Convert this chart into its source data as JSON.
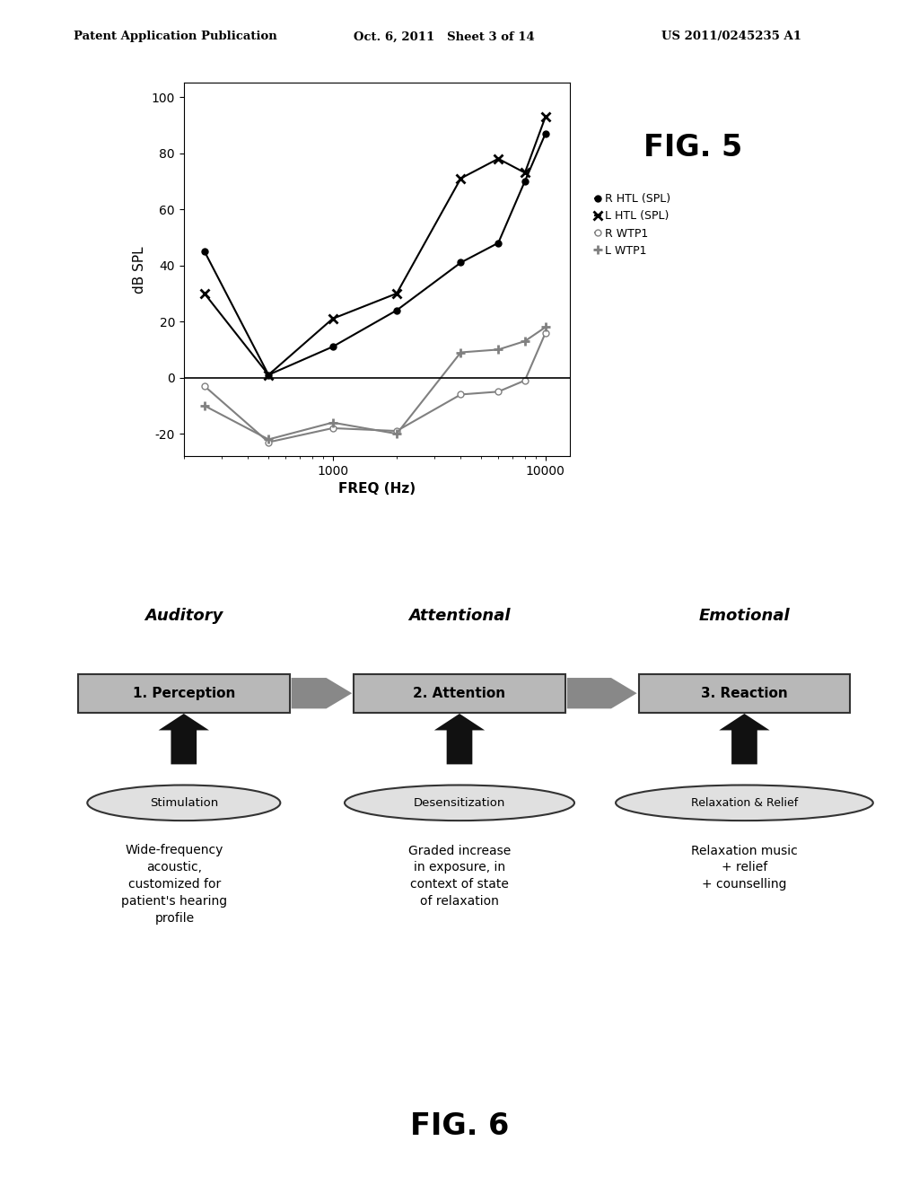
{
  "header_left": "Patent Application Publication",
  "header_mid": "Oct. 6, 2011   Sheet 3 of 14",
  "header_right": "US 2011/0245235 A1",
  "fig5_label": "FIG. 5",
  "fig6_label": "FIG. 6",
  "xaxis_label": "FREQ (Hz)",
  "yaxis_label": "dB SPL",
  "ylim": [
    -28,
    105
  ],
  "xticks_vals": [
    1000,
    10000
  ],
  "xticks_labels": [
    "1000",
    "10000"
  ],
  "yticks": [
    -20,
    0,
    20,
    40,
    60,
    80,
    100
  ],
  "R_HTL": {
    "freqs": [
      250,
      500,
      1000,
      2000,
      4000,
      6000,
      8000,
      10000
    ],
    "values": [
      45,
      1,
      11,
      24,
      41,
      48,
      70,
      87
    ]
  },
  "L_HTL": {
    "freqs": [
      250,
      500,
      1000,
      2000,
      4000,
      6000,
      8000,
      10000
    ],
    "values": [
      30,
      1,
      21,
      30,
      71,
      78,
      73,
      93
    ]
  },
  "R_WTP1": {
    "freqs": [
      250,
      500,
      1000,
      2000,
      4000,
      6000,
      8000,
      10000
    ],
    "values": [
      -3,
      -23,
      -18,
      -19,
      -6,
      -5,
      -1,
      16
    ]
  },
  "L_WTP1": {
    "freqs": [
      250,
      500,
      1000,
      2000,
      4000,
      6000,
      8000,
      10000
    ],
    "values": [
      -10,
      -22,
      -16,
      -20,
      9,
      10,
      13,
      18
    ]
  },
  "legend": [
    "R HTL (SPL)",
    "L HTL (SPL)",
    "R WTP1",
    "L WTP1"
  ],
  "fig6": {
    "col_headers": [
      "Auditory",
      "Attentional",
      "Emotional"
    ],
    "boxes": [
      "1. Perception",
      "2. Attention",
      "3. Reaction"
    ],
    "ellipses": [
      "Stimulation",
      "Desensitization",
      "Relaxation & Relief"
    ],
    "texts": [
      "Wide-frequency\nacoustic,\ncustomized for\npatient's hearing\nprofile",
      "Graded increase\nin exposure, in\ncontext of state\nof relaxation",
      "Relaxation music\n+ relief\n+ counselling"
    ]
  },
  "box_facecolor": "#b8b8b8",
  "box_edgecolor": "#333333",
  "arrow_color": "#888888",
  "ellipse_facecolor": "#e0e0e0",
  "ellipse_edgecolor": "#333333",
  "up_arrow_color": "#111111"
}
